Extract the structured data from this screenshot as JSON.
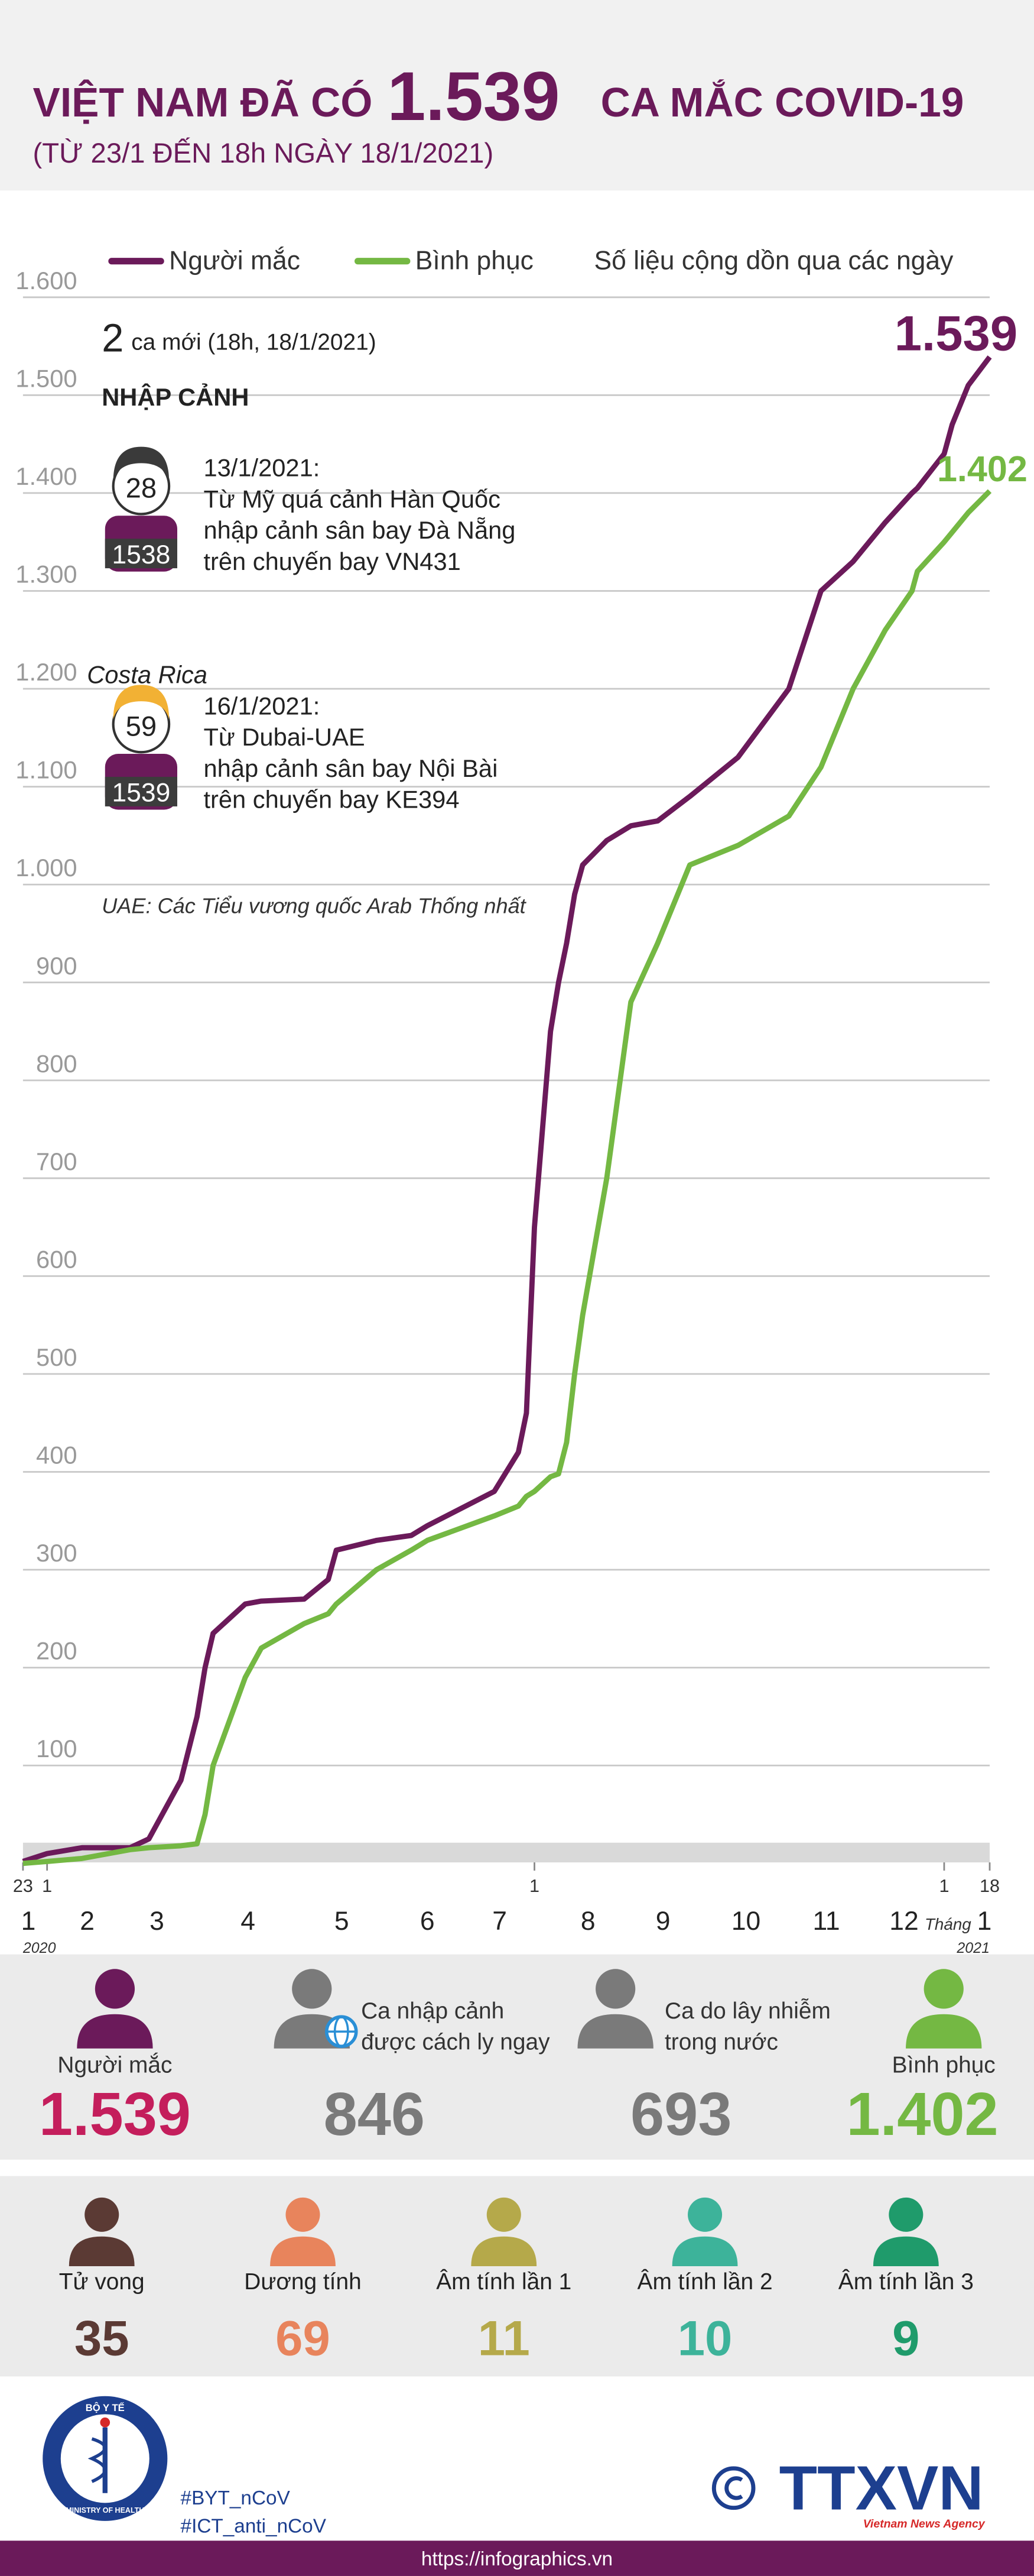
{
  "header": {
    "title_pre": "VIỆT NAM ĐÃ CÓ",
    "title_num": "1.539",
    "title_post": "CA MẮC COVID-19",
    "subtitle": "(TỪ 23/1 ĐẾN 18h NGÀY 18/1/2021)"
  },
  "chart_data": {
    "type": "line",
    "subtitle": "Số liệu cộng dồn qua các ngày",
    "x": [
      0,
      9,
      22,
      40,
      47,
      59,
      65,
      68,
      71,
      83,
      89,
      105,
      114,
      117,
      132,
      145,
      151,
      176,
      185,
      188,
      191,
      197,
      200,
      203,
      206,
      209,
      218,
      227,
      237,
      249,
      267,
      286,
      298,
      310,
      316,
      322,
      332,
      334,
      344,
      347,
      353,
      361
    ],
    "series": [
      {
        "name": "Người mắc",
        "color": "#6b1a5a",
        "end_label": "1.539",
        "values": [
          2,
          10,
          16,
          16,
          25,
          85,
          150,
          200,
          235,
          265,
          268,
          270,
          290,
          320,
          330,
          335,
          345,
          380,
          420,
          460,
          650,
          850,
          900,
          940,
          990,
          1020,
          1045,
          1060,
          1065,
          1090,
          1130,
          1200,
          1300,
          1330,
          1350,
          1370,
          1400,
          1405,
          1440,
          1470,
          1510,
          1539
        ]
      },
      {
        "name": "Bình phục",
        "color": "#74b843",
        "end_label": "1.402",
        "values": [
          0,
          2,
          5,
          14,
          16,
          18,
          20,
          50,
          100,
          190,
          220,
          245,
          255,
          265,
          300,
          320,
          330,
          355,
          365,
          375,
          380,
          395,
          398,
          430,
          500,
          560,
          700,
          880,
          940,
          1020,
          1040,
          1070,
          1120,
          1200,
          1230,
          1260,
          1300,
          1320,
          1350,
          1360,
          1380,
          1402
        ]
      }
    ],
    "xlim": [
      0,
      361
    ],
    "xticks": [
      {
        "value": 0,
        "label": "23"
      },
      {
        "value": 9,
        "label": "1"
      },
      {
        "value": 191,
        "label": "1"
      },
      {
        "value": 344,
        "label": "1"
      },
      {
        "value": 361,
        "label": "18"
      }
    ],
    "month_labels": [
      {
        "value": 2,
        "label": "1"
      },
      {
        "value": 24,
        "label": "2"
      },
      {
        "value": 50,
        "label": "3"
      },
      {
        "value": 84,
        "label": "4"
      },
      {
        "value": 119,
        "label": "5"
      },
      {
        "value": 151,
        "label": "6"
      },
      {
        "value": 178,
        "label": "7"
      },
      {
        "value": 211,
        "label": "8"
      },
      {
        "value": 239,
        "label": "9"
      },
      {
        "value": 270,
        "label": "10"
      },
      {
        "value": 300,
        "label": "11"
      },
      {
        "value": 329,
        "label": "12"
      },
      {
        "value": 359,
        "label": "1"
      }
    ],
    "month_unit": "Tháng",
    "year_labels": [
      {
        "value": 0,
        "label": "2020"
      },
      {
        "value": 361,
        "label": "2021"
      }
    ],
    "ylim": [
      0,
      1600
    ],
    "yticks": [
      100,
      200,
      300,
      400,
      500,
      600,
      700,
      800,
      900,
      {
        "value": 1000,
        "label": "1.000"
      },
      {
        "value": 1100,
        "label": "1.100"
      },
      {
        "value": 1200,
        "label": "1.200"
      },
      {
        "value": 1300,
        "label": "1.300"
      },
      {
        "value": 1400,
        "label": "1.400"
      },
      {
        "value": 1500,
        "label": "1.500"
      },
      {
        "value": 1600,
        "label": "1.600"
      }
    ],
    "grid": true
  },
  "annotations": {
    "new_cases_num": "2",
    "new_cases_text": "ca mới (18h, 18/1/2021)",
    "section": "NHẬP CẢNH",
    "cases": [
      {
        "age": "28",
        "id": "1538",
        "hair": "#3a3a3a",
        "lines": [
          "13/1/2021:",
          "Từ Mỹ quá cảnh Hàn Quốc",
          "nhập cảnh sân bay Đà Nẵng",
          "trên chuyến bay VN431"
        ]
      },
      {
        "tag": "Costa Rica",
        "age": "59",
        "id": "1539",
        "hair": "#f2b134",
        "lines": [
          "16/1/2021:",
          "Từ Dubai-UAE",
          "nhập cảnh sân bay Nội Bài",
          "trên chuyến bay KE394"
        ]
      }
    ],
    "note": "UAE: Các Tiểu vương quốc Arab Thống nhất"
  },
  "stats_main": [
    {
      "label": [
        "Người mắc"
      ],
      "value": "1.539",
      "color": "#c41e5c",
      "icon": "#6b1a5a"
    },
    {
      "label": [
        "Ca nhập cảnh",
        "được cách ly ngay"
      ],
      "value": "846",
      "color": "#7a7a7a",
      "icon": "#7a7a7a"
    },
    {
      "label": [
        "Ca do lây nhiễm",
        "trong nước"
      ],
      "value": "693",
      "color": "#7a7a7a",
      "icon": "#7a7a7a"
    },
    {
      "label": [
        "Bình phục"
      ],
      "value": "1.402",
      "color": "#74b843",
      "icon": "#74b843"
    }
  ],
  "stats_other": [
    {
      "label": "Tử vong",
      "value": "35",
      "color": "#5b3a34"
    },
    {
      "label": "Dương tính",
      "value": "69",
      "color": "#e8845c"
    },
    {
      "label": "Âm tính lần 1",
      "value": "11",
      "color": "#b5a94a"
    },
    {
      "label": "Âm tính lần 2",
      "value": "10",
      "color": "#3db39a"
    },
    {
      "label": "Âm tính lần 3",
      "value": "9",
      "color": "#1f9b6b"
    }
  ],
  "footer": {
    "logo_top": "BỘ Y TẾ",
    "logo_bottom": "MINISTRY OF HEALTH",
    "hashtags": [
      "#BYT_nCoV",
      "#ICT_anti_nCoV"
    ],
    "agency": "TTXVN",
    "agency_sub": "Vietnam News Agency",
    "url": "https://infographics.vn"
  }
}
